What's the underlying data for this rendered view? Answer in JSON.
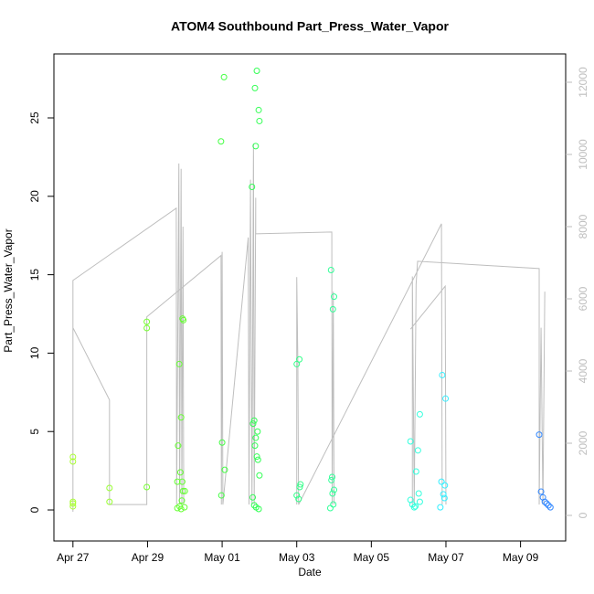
{
  "chart_data": {
    "type": "scatter",
    "title": "ATOM4 Southbound Part_Press_Water_Vapor",
    "x_label": "Date",
    "y_label": "Part_Press_Water_Vapor",
    "xlim": [
      -0.51,
      13.21
    ],
    "xticks": [
      {
        "value": 0,
        "label": "Apr 27"
      },
      {
        "value": 2,
        "label": "Apr 29"
      },
      {
        "value": 4,
        "label": "May 01"
      },
      {
        "value": 6,
        "label": "May 03"
      },
      {
        "value": 8,
        "label": "May 05"
      },
      {
        "value": 10,
        "label": "May 07"
      },
      {
        "value": 12,
        "label": "May 09"
      }
    ],
    "ylim": [
      -1.98,
      29.08
    ],
    "yticks": [
      0,
      5,
      10,
      15,
      20,
      25
    ],
    "y2lim": [
      -709,
      12785
    ],
    "y2ticks": [
      0,
      2000,
      4000,
      6000,
      8000,
      10000,
      12000
    ],
    "series": [
      {
        "type": "line",
        "axis": "y2",
        "color": "#bebebe",
        "x": [
          0,
          0,
          2.77,
          2.78,
          2.84,
          2.86,
          2.9,
          2.92,
          2.95,
          2.97,
          null,
          0,
          0,
          0.98,
          0.98,
          1.98,
          1.98,
          3.97,
          3.98,
          4.0,
          4.02,
          4.7,
          4.72,
          4.76,
          4.8,
          4.84,
          4.86,
          4.9,
          4.9,
          6.94,
          6.95,
          6.98,
          7.0,
          null,
          6.0,
          6.0,
          6.03,
          6.05,
          9.88,
          9.9,
          null,
          9.1,
          9.1,
          9.15,
          9.2,
          9.24,
          12.5,
          12.5,
          12.55,
          12.6,
          12.65,
          null,
          9.05,
          9.98,
          10.0
        ],
        "values": [
          100,
          6510,
          8510,
          300,
          9750,
          300,
          9600,
          300,
          8000,
          300,
          null,
          100,
          5200,
          3200,
          300,
          300,
          5500,
          7200,
          300,
          7300,
          300,
          7700,
          300,
          9300,
          300,
          10300,
          300,
          8800,
          7800,
          7850,
          300,
          6200,
          300,
          null,
          300,
          6600,
          4230,
          300,
          8080,
          300,
          null,
          300,
          6620,
          300,
          6400,
          7040,
          6840,
          300,
          5200,
          300,
          6200,
          null,
          5160,
          6350,
          300
        ]
      },
      {
        "type": "scatter",
        "color": "#aaff33",
        "x": [
          0,
          0,
          0,
          0,
          0
        ],
        "values": [
          3.38,
          3.09,
          0.52,
          0.41,
          0.23
        ]
      },
      {
        "type": "scatter",
        "color": "#99ff33",
        "x": [
          0.98,
          0.98
        ],
        "values": [
          1.4,
          0.52
        ]
      },
      {
        "type": "scatter",
        "color": "#77ff33",
        "x": [
          1.98,
          1.98,
          1.98
        ],
        "values": [
          12.0,
          11.6,
          1.46
        ]
      },
      {
        "type": "scatter",
        "color": "#66ff33",
        "x": [
          2.85,
          2.9,
          2.82,
          2.88,
          2.8,
          2.95,
          2.92,
          2.86,
          2.8,
          2.9,
          2.94,
          2.96,
          2.93,
          3.0,
          2.99
        ],
        "values": [
          9.3,
          5.9,
          4.1,
          2.4,
          1.8,
          1.2,
          0.6,
          0.23,
          0.12,
          0.06,
          12.2,
          12.1,
          1.8,
          1.2,
          0.17
        ]
      },
      {
        "type": "scatter",
        "color": "#44ff44",
        "x": [
          3.97,
          4.05,
          4.0,
          4.07,
          3.98
        ],
        "values": [
          23.5,
          27.6,
          4.3,
          2.56,
          0.93
        ]
      },
      {
        "type": "scatter",
        "color": "#33ff55",
        "x": [
          4.8,
          4.9,
          4.93,
          4.88,
          4.98,
          5.0,
          4.83,
          4.86,
          4.95,
          4.9,
          4.88,
          4.93,
          4.96,
          5.0,
          4.82,
          4.86,
          4.91,
          4.98
        ],
        "values": [
          20.6,
          23.2,
          28.0,
          26.9,
          25.5,
          24.8,
          5.5,
          5.7,
          5.0,
          4.6,
          4.1,
          3.4,
          3.2,
          2.2,
          0.8,
          0.3,
          0.17,
          0.06
        ]
      },
      {
        "type": "scatter",
        "color": "#33ff88",
        "x": [
          6.07,
          6.0,
          6.1,
          6.08,
          6.0,
          6.05
        ],
        "values": [
          9.6,
          9.3,
          1.63,
          1.46,
          0.93,
          0.7
        ]
      },
      {
        "type": "scatter",
        "color": "#33ff99",
        "x": [
          6.92,
          7.0,
          6.97,
          6.95,
          6.93,
          7.0,
          6.96,
          6.98,
          6.9
        ],
        "values": [
          15.3,
          13.6,
          12.8,
          2.1,
          1.9,
          1.28,
          1.05,
          0.35,
          0.12
        ]
      },
      {
        "type": "scatter",
        "color": "#33ffdd",
        "x": [
          9.05,
          9.3,
          9.25,
          9.2,
          9.27,
          9.05,
          9.3,
          9.1,
          9.18,
          9.15
        ],
        "values": [
          4.37,
          6.1,
          3.8,
          2.45,
          1.05,
          0.64,
          0.52,
          0.35,
          0.23,
          0.17
        ]
      },
      {
        "type": "scatter",
        "color": "#33eeff",
        "x": [
          9.9,
          9.99,
          9.88,
          9.97,
          9.93,
          9.96,
          9.85
        ],
        "values": [
          8.6,
          7.1,
          1.8,
          1.57,
          1.0,
          0.76,
          0.17
        ]
      },
      {
        "type": "scatter",
        "color": "#3388ff",
        "x": [
          12.5,
          12.55,
          12.6,
          12.65,
          12.7,
          12.75,
          12.8
        ],
        "values": [
          4.8,
          1.17,
          0.8,
          0.52,
          0.41,
          0.29,
          0.17
        ]
      }
    ]
  }
}
